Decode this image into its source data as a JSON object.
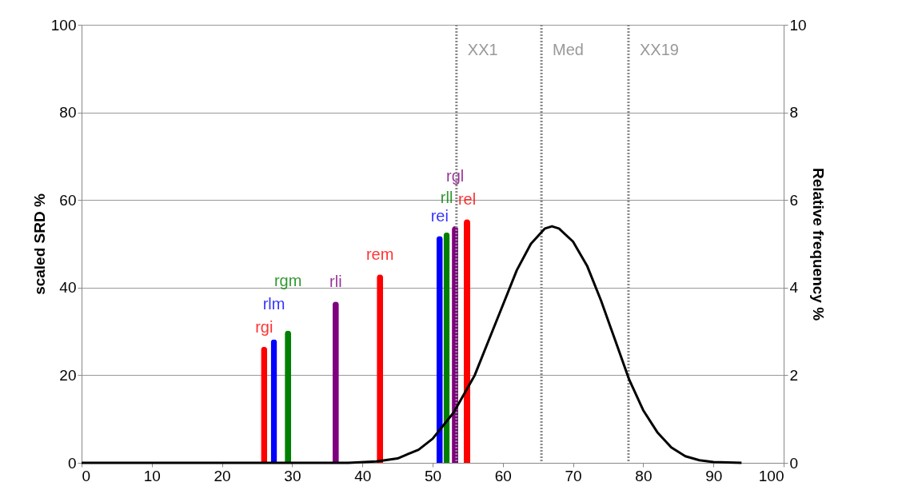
{
  "chart_data": {
    "type": "bar",
    "ylabel": "scaled SRD %",
    "y2label": "Relative frequency %",
    "xlim": [
      0,
      100
    ],
    "xticks": [
      0,
      10,
      20,
      30,
      40,
      50,
      60,
      70,
      80,
      90,
      100
    ],
    "ylim": [
      0,
      100
    ],
    "yticks": [
      0,
      20,
      40,
      60,
      80,
      100
    ],
    "y2lim": [
      0,
      10
    ],
    "y2ticks": [
      0,
      2,
      4,
      6,
      8,
      10
    ],
    "grid": "y",
    "series": [
      {
        "x": [
          26.0,
          27.4,
          29.4,
          36.2,
          42.5,
          51.0,
          52.0,
          53.2,
          54.9
        ],
        "values": [
          26.5,
          28.2,
          30.2,
          36.8,
          43.0,
          51.8,
          52.6,
          54.0,
          55.6
        ],
        "colors": [
          "#ff0000",
          "#0000ff",
          "#008000",
          "#7f007f",
          "#ff0000",
          "#0000ff",
          "#008000",
          "#7f007f",
          "#ff0000"
        ]
      },
      {
        "type": "line",
        "axis": "y2",
        "color": "#000000",
        "x": [
          0,
          10,
          20,
          30,
          38,
          42,
          45,
          48,
          50,
          53,
          56,
          58,
          60,
          62,
          64,
          66,
          67,
          68,
          70,
          72,
          74,
          76,
          78,
          80,
          82,
          84,
          86,
          88,
          90,
          94
        ],
        "values": [
          0,
          0,
          0,
          0,
          0,
          0.03,
          0.1,
          0.3,
          0.55,
          1.15,
          2.0,
          2.8,
          3.6,
          4.4,
          5.0,
          5.35,
          5.4,
          5.35,
          5.05,
          4.5,
          3.7,
          2.8,
          1.9,
          1.2,
          0.7,
          0.35,
          0.15,
          0.06,
          0.02,
          0
        ]
      }
    ],
    "annotations": [
      {
        "text": "rgi",
        "x": 26.0,
        "y": 26.5
      },
      {
        "text": "rlm",
        "x": 27.4,
        "y": 28.2
      },
      {
        "text": "rgm",
        "x": 29.4,
        "y": 30.2
      },
      {
        "text": "rli",
        "x": 36.2,
        "y": 36.8
      },
      {
        "text": "rem",
        "x": 42.5,
        "y": 43.0
      },
      {
        "text": "rei",
        "x": 51.0,
        "y": 51.8
      },
      {
        "text": "rll",
        "x": 52.0,
        "y": 52.6
      },
      {
        "text": "rgl",
        "x": 53.2,
        "y": 54.0
      },
      {
        "text": "rel",
        "x": 54.9,
        "y": 55.6
      }
    ],
    "ref_lines": [
      {
        "axis": "x",
        "value": 53.4,
        "label": "XX1",
        "color": "#888888",
        "line_style": "dotted"
      },
      {
        "axis": "x",
        "value": 65.5,
        "label": "Med",
        "color": "#888888",
        "line_style": "dotted"
      },
      {
        "axis": "x",
        "value": 77.9,
        "label": "XX19",
        "color": "#888888",
        "line_style": "dotted"
      }
    ]
  }
}
